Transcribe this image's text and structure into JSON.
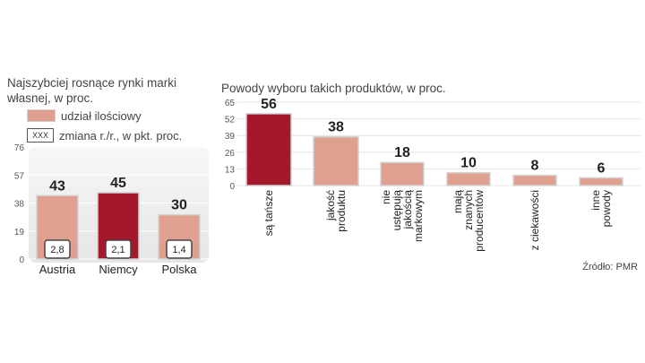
{
  "left_title": "Najszybciej rosnące rynki marki własnej, w proc.",
  "right_title": "Powody wyboru takich produktów, w proc.",
  "legend": {
    "share_label": "udział ilościowy",
    "change_box_text": "XXX",
    "change_label": "zmiana r./r., w pkt. proc."
  },
  "source": "Źródło: PMR",
  "colors": {
    "highlight": "#a3182b",
    "normal": "#dfa08f",
    "panel": "#efefef"
  },
  "chart_data": [
    {
      "type": "bar",
      "categories": [
        "Austria",
        "Niemcy",
        "Polska"
      ],
      "values": [
        43,
        45,
        30
      ],
      "value_labels": [
        "43",
        "45",
        "30"
      ],
      "change_labels": [
        "2,8",
        "2,1",
        "1,4"
      ],
      "highlight_index": 1,
      "ylim": [
        0,
        76
      ],
      "yticks": [
        "0",
        "19",
        "38",
        "57",
        "76"
      ]
    },
    {
      "type": "bar",
      "categories": [
        [
          "są tańsze"
        ],
        [
          "jakość",
          "produktu"
        ],
        [
          "nie",
          "ustępują",
          "jakością",
          "markowym"
        ],
        [
          "mają",
          "znanych",
          "producentów"
        ],
        [
          "z ciekawości"
        ],
        [
          "inne",
          "powody"
        ]
      ],
      "values": [
        56,
        38,
        18,
        10,
        8,
        6
      ],
      "value_labels": [
        "56",
        "38",
        "18",
        "10",
        "8",
        "6"
      ],
      "highlight_index": 0,
      "ylim": [
        0,
        65
      ],
      "yticks": [
        "0",
        "13",
        "26",
        "39",
        "52",
        "65"
      ]
    }
  ]
}
